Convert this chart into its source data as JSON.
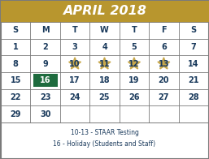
{
  "title": "APRIL 2018",
  "title_bg": "#b8962e",
  "title_color": "#ffffff",
  "weekdays": [
    "S",
    "M",
    "T",
    "W",
    "T",
    "F",
    "S"
  ],
  "weekday_color": "#1a3a5c",
  "calendar_rows": [
    [
      1,
      2,
      3,
      4,
      5,
      6,
      7
    ],
    [
      8,
      9,
      10,
      11,
      12,
      13,
      14
    ],
    [
      15,
      16,
      17,
      18,
      19,
      20,
      21
    ],
    [
      22,
      23,
      24,
      25,
      26,
      27,
      28
    ],
    [
      29,
      30,
      0,
      0,
      0,
      0,
      0
    ]
  ],
  "number_color": "#1a3a5c",
  "star_days": [
    10,
    11,
    12,
    13
  ],
  "star_color": "#c8a84b",
  "holiday_days": [
    16
  ],
  "holiday_bg": "#1e6b3e",
  "holiday_text_color": "#ffffff",
  "legend_lines": [
    "10-13 - STAAR Testing",
    "16 - Holiday (Students and Staff)"
  ],
  "legend_color": "#1a3a5c",
  "bg_color": "#ffffff",
  "border_color": "#7a7a7a"
}
